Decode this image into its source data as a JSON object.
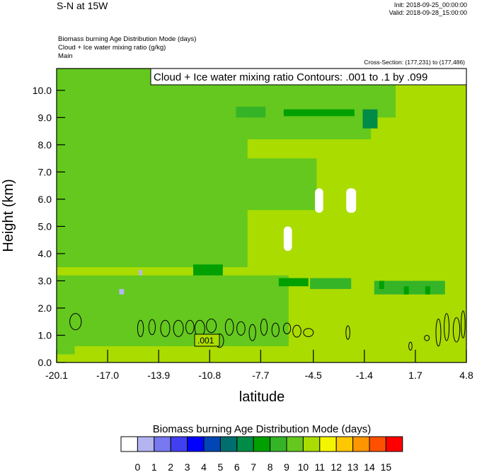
{
  "header": {
    "title": "S-N at 15W",
    "init": "Init: 2018-09-25_00:00:00",
    "valid": "Valid: 2018-09-28_15:00:00",
    "fields": [
      "Biomass burning Age Distribution Mode   (days)",
      "Cloud + Ice water mixing ratio   (g/kg)",
      "Main"
    ],
    "cross_section": "Cross-Section: (177,231) to (177,486)"
  },
  "chart_data": {
    "type": "heatmap",
    "contour_label": "Cloud + Ice water mixing ratio Contours: .001 to .1 by .099",
    "contour_value_label": ".001",
    "xlabel": "latitude",
    "ylabel": "Height (km)",
    "x_ticks": [
      "-20.1",
      "-17.0",
      "-13.9",
      "-10.8",
      "-7.7",
      "-4.5",
      "-1.4",
      "1.7",
      "4.8"
    ],
    "x_tick_values": [
      -20.1,
      -17.0,
      -13.9,
      -10.8,
      -7.7,
      -4.5,
      -1.4,
      1.7,
      4.8
    ],
    "y_ticks": [
      "0.0",
      "1.0",
      "2.0",
      "3.0",
      "4.0",
      "5.0",
      "6.0",
      "7.0",
      "8.0",
      "9.0",
      "10.0"
    ],
    "xlim": [
      -20.1,
      4.8
    ],
    "ylim": [
      0.0,
      10.8
    ],
    "colorbar": {
      "title": "Biomass burning Age Distribution Mode  (days)",
      "labels": [
        "0",
        "1",
        "2",
        "3",
        "4",
        "5",
        "6",
        "7",
        "8",
        "9",
        "10",
        "11",
        "12",
        "13",
        "14",
        "15"
      ],
      "colors": [
        "#ffffff",
        "#b4b4f0",
        "#7878f0",
        "#4040f0",
        "#0000ff",
        "#0046b4",
        "#006e6e",
        "#008c46",
        "#00a000",
        "#36b428",
        "#64c81e",
        "#aadc00",
        "#f5f500",
        "#ffc800",
        "#ff9600",
        "#ff5000",
        "#ff0000"
      ]
    },
    "regions": [
      {
        "value": 10,
        "lat": [
          -20.1,
          -8.5
        ],
        "z": [
          3.5,
          10.8
        ]
      },
      {
        "value": 10,
        "lat": [
          -8.5,
          -1.0
        ],
        "z": [
          8.2,
          10.8
        ]
      },
      {
        "value": 10,
        "lat": [
          -2.5,
          0.5
        ],
        "z": [
          9.0,
          10.8
        ]
      },
      {
        "value": 10,
        "lat": [
          -8.5,
          -4.3
        ],
        "z": [
          5.6,
          7.5
        ]
      },
      {
        "value": 10,
        "lat": [
          -20.1,
          -6.0
        ],
        "z": [
          0.6,
          3.2
        ]
      },
      {
        "value": 10,
        "lat": [
          -20.1,
          -19.0
        ],
        "z": [
          0.3,
          0.6
        ]
      },
      {
        "value": 9,
        "lat": [
          -9.2,
          -7.4
        ],
        "z": [
          9.0,
          9.4
        ]
      },
      {
        "value": 8,
        "lat": [
          -6.3,
          -2.0
        ],
        "z": [
          9.05,
          9.3
        ]
      },
      {
        "value": 7,
        "lat": [
          -1.5,
          -0.6
        ],
        "z": [
          8.6,
          9.3
        ]
      },
      {
        "value": 8,
        "lat": [
          -11.8,
          -10.0
        ],
        "z": [
          3.2,
          3.6
        ]
      },
      {
        "value": 8,
        "lat": [
          -6.6,
          -4.8
        ],
        "z": [
          2.8,
          3.1
        ]
      },
      {
        "value": 9,
        "lat": [
          -4.7,
          -2.2
        ],
        "z": [
          2.7,
          3.1
        ]
      },
      {
        "value": 9,
        "lat": [
          -0.8,
          3.5
        ],
        "z": [
          2.5,
          3.0
        ]
      },
      {
        "value": 8,
        "lat": [
          -0.5,
          -0.2
        ],
        "z": [
          2.7,
          3.0
        ]
      },
      {
        "value": 8,
        "lat": [
          1.0,
          1.3
        ],
        "z": [
          2.5,
          2.8
        ]
      },
      {
        "value": 8,
        "lat": [
          2.3,
          2.6
        ],
        "z": [
          2.5,
          2.8
        ]
      },
      {
        "value": 1,
        "lat": [
          -16.3,
          -16.0
        ],
        "z": [
          2.5,
          2.7
        ]
      },
      {
        "value": 1,
        "lat": [
          -15.1,
          -14.9
        ],
        "z": [
          3.2,
          3.4
        ]
      },
      {
        "value": 0,
        "lat": [
          -4.4,
          -3.9
        ],
        "z": [
          5.5,
          6.4
        ]
      },
      {
        "value": 0,
        "lat": [
          -2.5,
          -1.9
        ],
        "z": [
          5.5,
          6.4
        ]
      },
      {
        "value": 0,
        "lat": [
          -6.3,
          -5.8
        ],
        "z": [
          4.1,
          5.0
        ]
      }
    ],
    "contours": [
      {
        "lat": -18.95,
        "z": 1.5,
        "rlat": 0.35,
        "rz": 0.3
      },
      {
        "lat": -15.0,
        "z": 1.25,
        "rlat": 0.18,
        "rz": 0.3
      },
      {
        "lat": -14.3,
        "z": 1.3,
        "rlat": 0.2,
        "rz": 0.28
      },
      {
        "lat": -13.5,
        "z": 1.25,
        "rlat": 0.28,
        "rz": 0.3
      },
      {
        "lat": -12.7,
        "z": 1.25,
        "rlat": 0.3,
        "rz": 0.3
      },
      {
        "lat": -12.0,
        "z": 1.3,
        "rlat": 0.25,
        "rz": 0.25
      },
      {
        "lat": -11.4,
        "z": 1.25,
        "rlat": 0.3,
        "rz": 0.3
      },
      {
        "lat": -10.7,
        "z": 1.35,
        "rlat": 0.3,
        "rz": 0.25
      },
      {
        "lat": -10.2,
        "z": 0.8,
        "rlat": 0.25,
        "rz": 0.25
      },
      {
        "lat": -9.6,
        "z": 1.3,
        "rlat": 0.25,
        "rz": 0.3
      },
      {
        "lat": -8.9,
        "z": 1.25,
        "rlat": 0.25,
        "rz": 0.25
      },
      {
        "lat": -8.2,
        "z": 1.1,
        "rlat": 0.2,
        "rz": 0.3
      },
      {
        "lat": -7.5,
        "z": 1.3,
        "rlat": 0.2,
        "rz": 0.3
      },
      {
        "lat": -6.8,
        "z": 1.2,
        "rlat": 0.22,
        "rz": 0.25
      },
      {
        "lat": -6.1,
        "z": 1.25,
        "rlat": 0.22,
        "rz": 0.2
      },
      {
        "lat": -5.5,
        "z": 1.15,
        "rlat": 0.25,
        "rz": 0.22
      },
      {
        "lat": -4.8,
        "z": 1.1,
        "rlat": 0.3,
        "rz": 0.15
      },
      {
        "lat": -2.4,
        "z": 1.1,
        "rlat": 0.12,
        "rz": 0.25
      },
      {
        "lat": 1.4,
        "z": 0.6,
        "rlat": 0.1,
        "rz": 0.15
      },
      {
        "lat": 2.4,
        "z": 0.9,
        "rlat": 0.15,
        "rz": 0.1
      },
      {
        "lat": 3.1,
        "z": 1.1,
        "rlat": 0.15,
        "rz": 0.5
      },
      {
        "lat": 3.6,
        "z": 1.3,
        "rlat": 0.15,
        "rz": 0.5
      },
      {
        "lat": 4.2,
        "z": 1.2,
        "rlat": 0.2,
        "rz": 0.45
      },
      {
        "lat": 4.6,
        "z": 1.4,
        "rlat": 0.12,
        "rz": 0.5
      }
    ]
  }
}
